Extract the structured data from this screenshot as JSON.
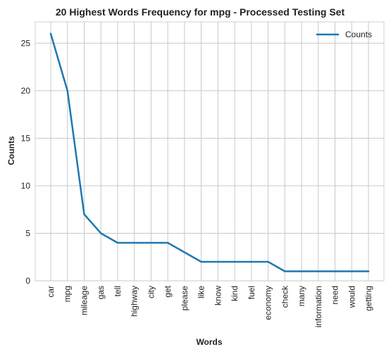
{
  "chart_data": {
    "type": "line",
    "title": "20 Highest Words Frequency for mpg - Processed Testing Set",
    "xlabel": "Words",
    "ylabel": "Counts",
    "categories": [
      "car",
      "mpg",
      "mileage",
      "gas",
      "tell",
      "highway",
      "city",
      "get",
      "please",
      "like",
      "know",
      "kind",
      "fuel",
      "economy",
      "check",
      "many",
      "information",
      "need",
      "would",
      "getting"
    ],
    "series": [
      {
        "name": "Counts",
        "values": [
          26,
          20,
          7,
          5,
          4,
          4,
          4,
          4,
          3,
          2,
          2,
          2,
          2,
          2,
          1,
          1,
          1,
          1,
          1,
          1
        ],
        "color": "#1f77b4"
      }
    ],
    "ylim": [
      0,
      27.25
    ],
    "yticks": [
      0,
      5,
      10,
      15,
      20,
      25
    ],
    "grid": true,
    "legend_position": "top-right",
    "background": "#eaeaf2"
  }
}
